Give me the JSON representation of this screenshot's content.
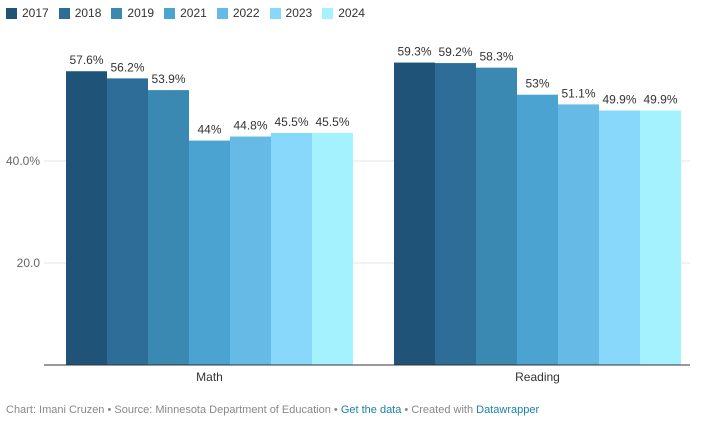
{
  "chart_data": {
    "type": "bar",
    "categories": [
      "Math",
      "Reading"
    ],
    "series": [
      {
        "name": "2017",
        "color": "#1f5478",
        "values": [
          57.6,
          59.3
        ],
        "labels": [
          "57.6%",
          "59.3%"
        ]
      },
      {
        "name": "2018",
        "color": "#2d6d97",
        "values": [
          56.2,
          59.2
        ],
        "labels": [
          "56.2%",
          "59.2%"
        ]
      },
      {
        "name": "2019",
        "color": "#3a89b2",
        "values": [
          53.9,
          58.3
        ],
        "labels": [
          "53.9%",
          "58.3%"
        ]
      },
      {
        "name": "2021",
        "color": "#4aa3d1",
        "values": [
          44,
          53
        ],
        "labels": [
          "44%",
          "53%"
        ]
      },
      {
        "name": "2022",
        "color": "#66bbe6",
        "values": [
          44.8,
          51.1
        ],
        "labels": [
          "44.8%",
          "51.1%"
        ]
      },
      {
        "name": "2023",
        "color": "#87d8fb",
        "values": [
          45.5,
          49.9
        ],
        "labels": [
          "45.5%",
          "49.9%"
        ]
      },
      {
        "name": "2024",
        "color": "#a3f2fd",
        "values": [
          45.5,
          49.9
        ],
        "labels": [
          "45.5%",
          "49.9%"
        ]
      }
    ],
    "yticks": [
      20,
      40
    ],
    "ytick_labels": [
      "20.0",
      "40.0%"
    ],
    "ylim": [
      0,
      60
    ],
    "grid": true,
    "legend": "top-left"
  },
  "footer": {
    "prefix": "Chart: Imani Cruzen • Source: Minnesota Department of Education • ",
    "data_link": "Get the data",
    "middle": " • Created with ",
    "tool_link": "Datawrapper"
  }
}
